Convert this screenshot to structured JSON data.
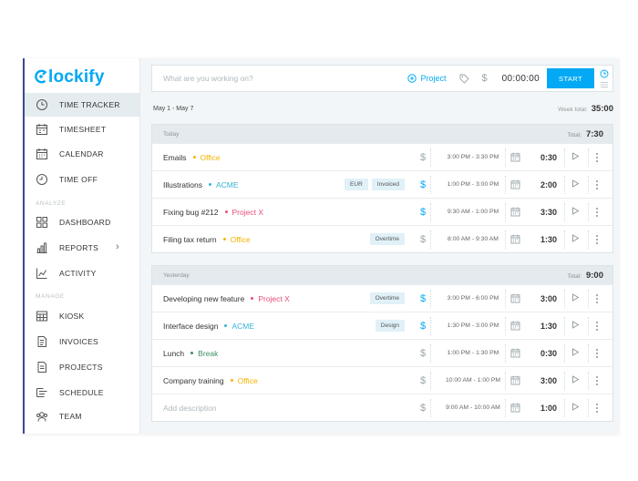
{
  "app": {
    "logo_rest": "lockify"
  },
  "colors": {
    "accent": "#03a9f4",
    "office": "#f5b400",
    "acme": "#36b3d3",
    "projectx": "#e84d77",
    "break": "#3d8f63",
    "sidebar_edge": "#3d4a8f"
  },
  "sidebar": {
    "items_top": [
      {
        "label": "TIME TRACKER",
        "icon": "clock-icon",
        "active": true
      },
      {
        "label": "TIMESHEET",
        "icon": "timesheet-icon"
      },
      {
        "label": "CALENDAR",
        "icon": "calendar-icon"
      },
      {
        "label": "TIME OFF",
        "icon": "time-off-icon"
      }
    ],
    "analyze_label": "ANALYZE",
    "items_analyze": [
      {
        "label": "DASHBOARD",
        "icon": "dashboard-icon"
      },
      {
        "label": "REPORTS",
        "icon": "reports-icon",
        "chevron": "›"
      },
      {
        "label": "ACTIVITY",
        "icon": "activity-icon"
      }
    ],
    "manage_label": "MANAGE",
    "items_manage": [
      {
        "label": "KIOSK",
        "icon": "kiosk-icon"
      },
      {
        "label": "INVOICES",
        "icon": "invoices-icon"
      },
      {
        "label": "PROJECTS",
        "icon": "projects-icon"
      },
      {
        "label": "SCHEDULE",
        "icon": "schedule-icon"
      },
      {
        "label": "TEAM",
        "icon": "team-icon"
      }
    ]
  },
  "tracker": {
    "placeholder": "What are you working on?",
    "project_label": "Project",
    "dollar": "$",
    "timer": "00:00:00",
    "start_label": "START"
  },
  "week": {
    "range": "May 1 - May 7",
    "total_label": "Week total:",
    "total": "35:00"
  },
  "groups": [
    {
      "label": "Today",
      "total_label": "Total:",
      "total": "7:30",
      "entries": [
        {
          "desc": "Emails",
          "project": "Office",
          "color": "#f5b400",
          "badges": [],
          "billable": false,
          "times": "3:00 PM - 3:30 PM",
          "duration": "0:30"
        },
        {
          "desc": "Illustrations",
          "project": "ACME",
          "color": "#36b3d3",
          "badges": [
            "EUR",
            "Invoiced"
          ],
          "billable": true,
          "times": "1:00 PM - 3:00 PM",
          "duration": "2:00"
        },
        {
          "desc": "Fixing bug #212",
          "project": "Project X",
          "color": "#e84d77",
          "badges": [],
          "billable": true,
          "times": "9:30 AM - 1:00 PM",
          "duration": "3:30"
        },
        {
          "desc": "Filing tax return",
          "project": "Office",
          "color": "#f5b400",
          "badges": [
            "Overtime"
          ],
          "billable": false,
          "times": "8:00 AM - 9:30 AM",
          "duration": "1:30"
        }
      ]
    },
    {
      "label": "Yesterday",
      "total_label": "Total:",
      "total": "9:00",
      "entries": [
        {
          "desc": "Developing new feature",
          "project": "Project X",
          "color": "#e84d77",
          "badges": [
            "Overtime"
          ],
          "billable": true,
          "times": "3:00 PM - 6:00 PM",
          "duration": "3:00"
        },
        {
          "desc": "Interface design",
          "project": "ACME",
          "color": "#36b3d3",
          "badges": [
            "Design"
          ],
          "billable": true,
          "times": "1:30 PM - 3:00 PM",
          "duration": "1:30"
        },
        {
          "desc": "Lunch",
          "project": "Break",
          "color": "#3d8f63",
          "badges": [],
          "billable": false,
          "times": "1:00 PM - 1:30 PM",
          "duration": "0:30"
        },
        {
          "desc": "Company training",
          "project": "Office",
          "color": "#f5b400",
          "badges": [],
          "billable": false,
          "times": "10:00 AM - 1:00 PM",
          "duration": "3:00"
        },
        {
          "desc": "Add description",
          "project": "",
          "color": "",
          "badges": [],
          "billable": false,
          "placeholder": true,
          "times": "9:00 AM - 10:00 AM",
          "duration": "1:00"
        }
      ]
    }
  ]
}
